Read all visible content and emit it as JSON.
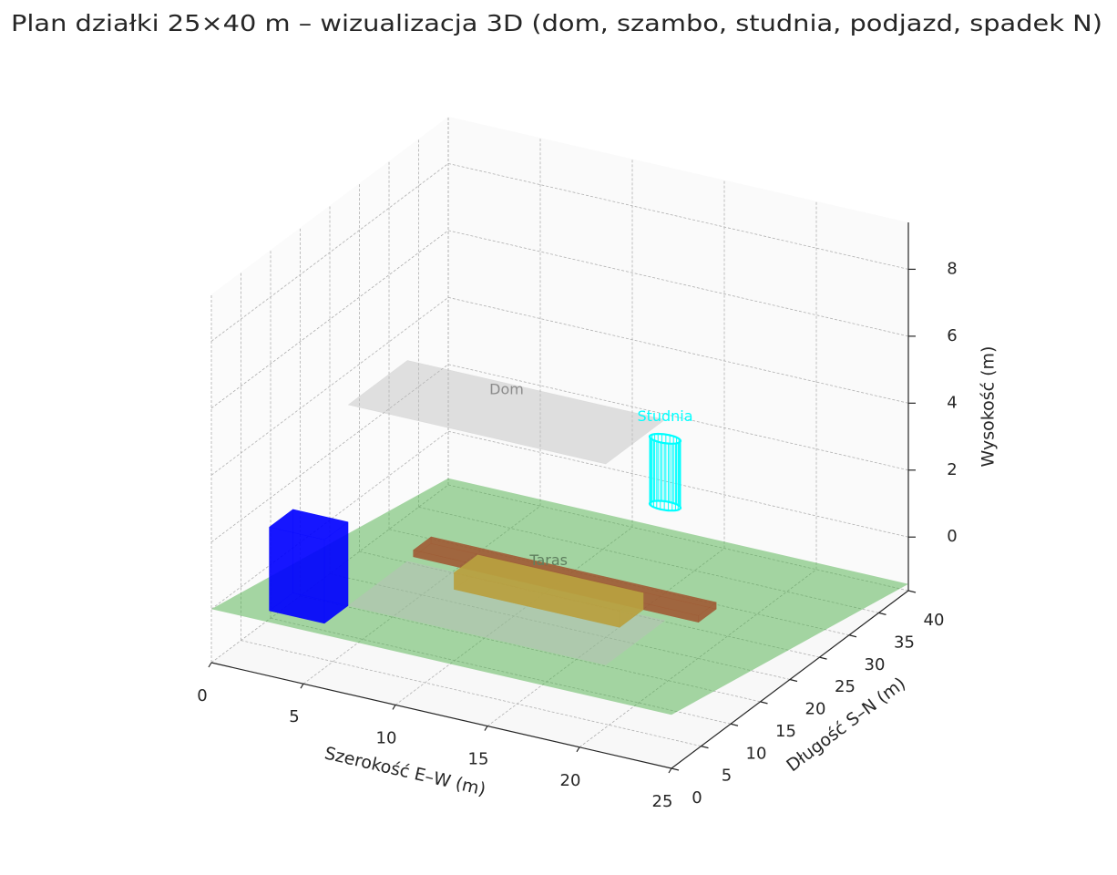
{
  "chart_data": {
    "type": "3d",
    "title": "Plan działki 25×40 m – wizualizacja 3D (dom, szambo, studnia, podjazd, spadek N)",
    "xlabel": "Szerokość E–W (m)",
    "ylabel": "Długość S–N (m)",
    "zlabel": "Wysokość (m)",
    "xlim": [
      0,
      25
    ],
    "ylim": [
      0,
      40
    ],
    "zlim": [
      -1.6,
      9.4
    ],
    "xticks": [
      0,
      5,
      10,
      15,
      20,
      25
    ],
    "yticks": [
      0,
      5,
      10,
      15,
      20,
      25,
      30,
      35,
      40
    ],
    "zticks": [
      0,
      2,
      4,
      6,
      8
    ],
    "grid": true,
    "objects": [
      {
        "shape": "slope",
        "x": [
          0,
          25
        ],
        "y": [
          0,
          40
        ],
        "z": [
          0,
          -1.4
        ],
        "color": "#4daf4a",
        "alpha": 0.5
      },
      {
        "shape": "box",
        "faces": [
          "bottom",
          "top"
        ],
        "x": [
          5.5,
          19.5
        ],
        "y": [
          6,
          16
        ],
        "z": [
          0,
          6
        ],
        "color": "#bdbdbd",
        "alpha": 0.45,
        "label": "Dom",
        "label_color": "#8c8c8c"
      },
      {
        "shape": "box",
        "x": [
          5.5,
          21
        ],
        "y": [
          17,
          20
        ],
        "z": [
          0,
          0.2
        ],
        "color": "#a0522d",
        "alpha": 0.6
      },
      {
        "shape": "box",
        "x": [
          9,
          18
        ],
        "y": [
          13,
          17
        ],
        "z": [
          0,
          0.5
        ],
        "color": "#b8a040",
        "alpha": 0.75,
        "label": "Taras",
        "label_color": "#5f7f5f"
      },
      {
        "shape": "box",
        "x": [
          2.5,
          5.5
        ],
        "y": [
          2,
          6
        ],
        "z": [
          0,
          2.5
        ],
        "color": "#0000ff",
        "alpha": 0.7
      },
      {
        "shape": "cylinder",
        "x": 15,
        "y": 30,
        "r": 0.8,
        "z": [
          1,
          3
        ],
        "color": "#00ffff",
        "label": "Studnia",
        "label_color": "#00ffff"
      }
    ]
  }
}
